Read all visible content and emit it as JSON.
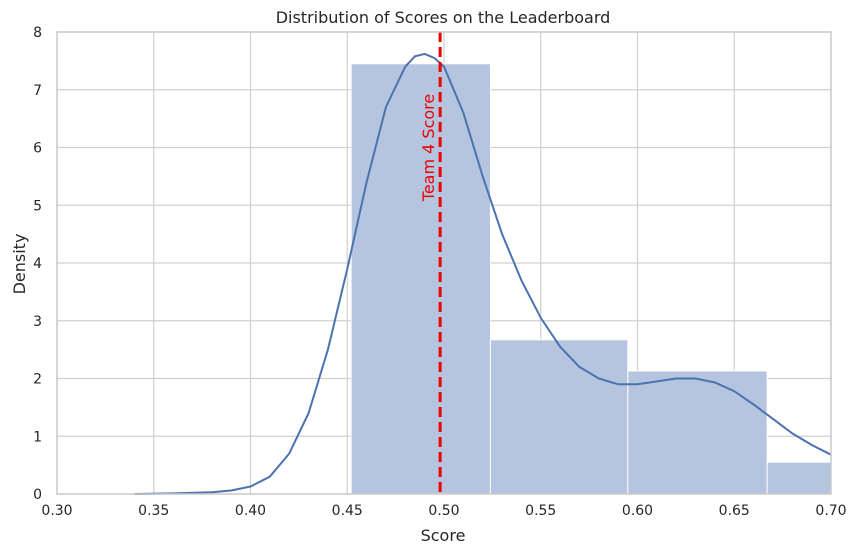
{
  "chart_data": {
    "type": "bar",
    "title": "Distribution of Scores on the Leaderboard",
    "xlabel": "Score",
    "ylabel": "Density",
    "xlim": [
      0.3,
      0.7
    ],
    "ylim": [
      0,
      8
    ],
    "x_ticks": [
      "0.30",
      "0.35",
      "0.40",
      "0.45",
      "0.50",
      "0.55",
      "0.60",
      "0.65",
      "0.70"
    ],
    "y_ticks": [
      "0",
      "1",
      "2",
      "3",
      "4",
      "5",
      "6",
      "7",
      "8"
    ],
    "grid": true,
    "bins": [
      {
        "start": 0.452,
        "end": 0.524,
        "density": 7.45
      },
      {
        "start": 0.524,
        "end": 0.595,
        "density": 2.67
      },
      {
        "start": 0.595,
        "end": 0.667,
        "density": 2.13
      },
      {
        "start": 0.667,
        "end": 0.738,
        "density": 0.55
      }
    ],
    "kde": {
      "x": [
        0.34,
        0.36,
        0.38,
        0.39,
        0.4,
        0.41,
        0.42,
        0.43,
        0.44,
        0.45,
        0.46,
        0.47,
        0.48,
        0.485,
        0.49,
        0.495,
        0.5,
        0.51,
        0.52,
        0.53,
        0.54,
        0.55,
        0.56,
        0.57,
        0.58,
        0.59,
        0.6,
        0.61,
        0.62,
        0.63,
        0.64,
        0.65,
        0.66,
        0.67,
        0.68,
        0.69,
        0.7
      ],
      "y": [
        0.0,
        0.01,
        0.03,
        0.06,
        0.13,
        0.3,
        0.7,
        1.4,
        2.5,
        3.9,
        5.4,
        6.7,
        7.4,
        7.58,
        7.62,
        7.55,
        7.4,
        6.6,
        5.5,
        4.5,
        3.7,
        3.05,
        2.55,
        2.2,
        2.0,
        1.9,
        1.9,
        1.95,
        2.0,
        2.0,
        1.93,
        1.78,
        1.55,
        1.3,
        1.05,
        0.85,
        0.68
      ]
    },
    "reference_line": {
      "x": 0.498,
      "label": "Team 4 Score"
    },
    "colors": {
      "bar_fill": "#b5c5e0",
      "bar_edge": "#ffffff",
      "kde_line": "#4c72b0",
      "reference_line": "#ee0000",
      "grid": "#d0d0d0",
      "frame": "#cccccc"
    }
  }
}
